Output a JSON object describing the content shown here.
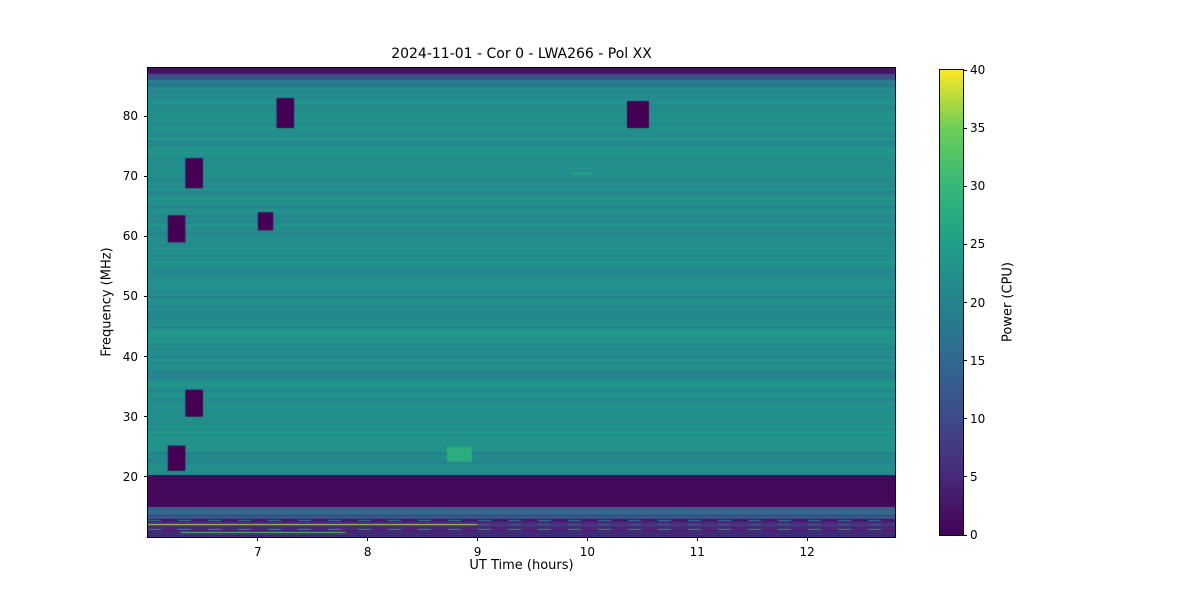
{
  "chart_data": {
    "type": "heatmap",
    "title": "2024-11-01 - Cor 0 - LWA266 - Pol XX",
    "xlabel": "UT Time (hours)",
    "ylabel": "Frequency (MHz)",
    "colorbar_label": "Power (CPU)",
    "colormap": "viridis",
    "x_range": [
      6.0,
      12.8
    ],
    "y_range": [
      10,
      88
    ],
    "x_ticks": [
      7,
      8,
      9,
      10,
      11,
      12
    ],
    "y_ticks": [
      20,
      30,
      40,
      50,
      60,
      70,
      80
    ],
    "colorbar_range": [
      0,
      40
    ],
    "colorbar_ticks": [
      0,
      5,
      10,
      15,
      20,
      25,
      30,
      35,
      40
    ],
    "background_power": 22,
    "bands": [
      {
        "f": [
          87.0,
          88.01
        ],
        "power": 2,
        "noise": 1.0
      },
      {
        "f": [
          86.0,
          87.0
        ],
        "power": 11,
        "noise": 1.0
      },
      {
        "f": [
          84.6,
          86.0
        ],
        "power": 19,
        "noise": 1.5
      },
      {
        "f": [
          20.3,
          84.6
        ],
        "power": 22,
        "noise": 2.4
      },
      {
        "f": [
          15.0,
          20.3
        ],
        "power": 1,
        "noise": 0
      },
      {
        "f": [
          13.0,
          15.0
        ],
        "power": 13,
        "noise": 3.0
      },
      {
        "f": [
          9.99,
          13.0
        ],
        "power": 5,
        "noise": 3.5
      }
    ],
    "features": [
      {
        "t": [
          6.0,
          12.8
        ],
        "f": [
          73.5,
          74.8
        ],
        "power": 23.2
      },
      {
        "t": [
          6.0,
          12.8
        ],
        "f": [
          43.2,
          44.6
        ],
        "power": 23.5
      },
      {
        "t": [
          6.0,
          12.8
        ],
        "f": [
          24.2,
          26.8
        ],
        "power": 23.0
      },
      {
        "t": [
          8.72,
          8.95
        ],
        "f": [
          22.5,
          25.0
        ],
        "power": 28
      },
      {
        "t": [
          9.87,
          10.05
        ],
        "f": [
          70.2,
          70.7
        ],
        "power": 26
      }
    ],
    "lines": [
      {
        "f": 14.4,
        "t": [
          6.0,
          12.8
        ],
        "power": 16,
        "h": 2
      },
      {
        "f": 13.6,
        "t": [
          6.0,
          12.8
        ],
        "power": 9,
        "h": 1
      },
      {
        "f": 12.75,
        "t": [
          6.0,
          12.8
        ],
        "power": 19,
        "h": 1,
        "dashed": true
      },
      {
        "f": 12.1,
        "t": [
          6.0,
          9.0
        ],
        "power": 37,
        "h": 1
      },
      {
        "f": 12.1,
        "t": [
          9.0,
          12.8
        ],
        "power": 14,
        "h": 1,
        "dashed": true
      },
      {
        "f": 11.4,
        "t": [
          6.0,
          12.8
        ],
        "power": 24,
        "h": 1,
        "dashed": true
      },
      {
        "f": 10.9,
        "t": [
          6.3,
          7.8
        ],
        "power": 33,
        "h": 1
      },
      {
        "f": 10.5,
        "t": [
          6.0,
          12.8
        ],
        "power": 8,
        "h": 1
      }
    ],
    "flagged_blocks": [
      {
        "t": [
          7.17,
          7.33
        ],
        "f": [
          78.0,
          83.0
        ]
      },
      {
        "t": [
          6.34,
          6.5
        ],
        "f": [
          68.0,
          73.0
        ]
      },
      {
        "t": [
          6.18,
          6.34
        ],
        "f": [
          59.0,
          63.5
        ]
      },
      {
        "t": [
          7.0,
          7.14
        ],
        "f": [
          61.0,
          64.0
        ]
      },
      {
        "t": [
          10.36,
          10.56
        ],
        "f": [
          78.0,
          82.5
        ]
      },
      {
        "t": [
          6.34,
          6.5
        ],
        "f": [
          30.0,
          34.5
        ]
      },
      {
        "t": [
          6.18,
          6.34
        ],
        "f": [
          21.0,
          25.2
        ]
      }
    ]
  }
}
